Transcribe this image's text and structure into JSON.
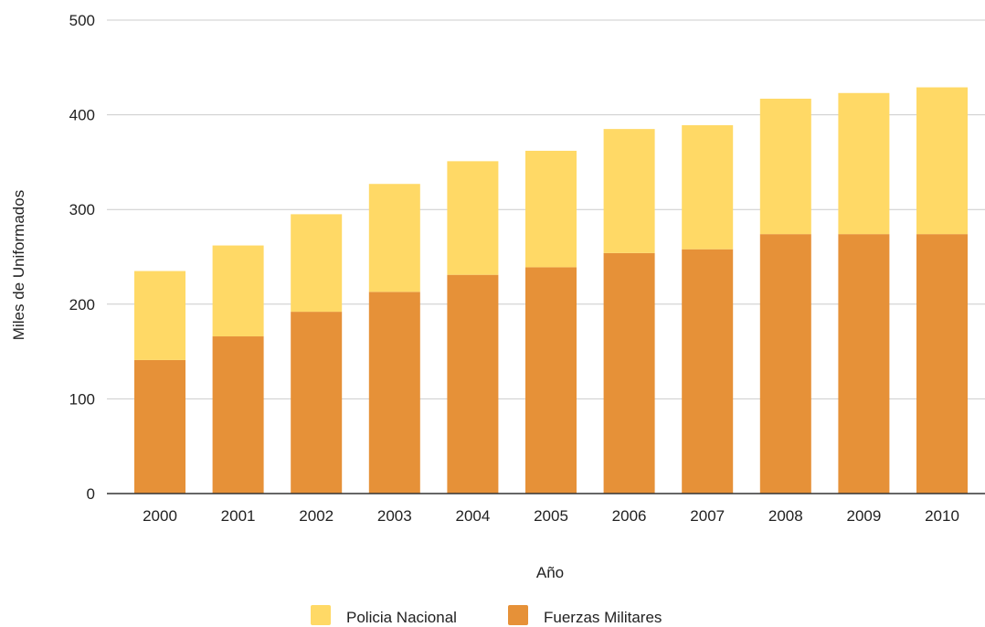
{
  "chart_data": {
    "type": "bar",
    "stacked": true,
    "title": "",
    "xlabel": "Año",
    "ylabel": "Miles de Uniformados",
    "ylim": [
      0,
      500
    ],
    "yticks": [
      0,
      100,
      200,
      300,
      400,
      500
    ],
    "grid": true,
    "legend_position": "bottom",
    "categories": [
      "2000",
      "2001",
      "2002",
      "2003",
      "2004",
      "2005",
      "2006",
      "2007",
      "2008",
      "2009",
      "2010"
    ],
    "series": [
      {
        "name": "Fuerzas Militares",
        "color": "#e69138",
        "values": [
          141,
          166,
          192,
          213,
          231,
          239,
          254,
          258,
          274,
          274,
          274
        ]
      },
      {
        "name": "Policia Nacional",
        "color": "#ffd966",
        "values": [
          94,
          96,
          103,
          114,
          120,
          123,
          131,
          131,
          143,
          149,
          155
        ]
      }
    ],
    "legend_order": [
      "Policia Nacional",
      "Fuerzas Militares"
    ]
  }
}
